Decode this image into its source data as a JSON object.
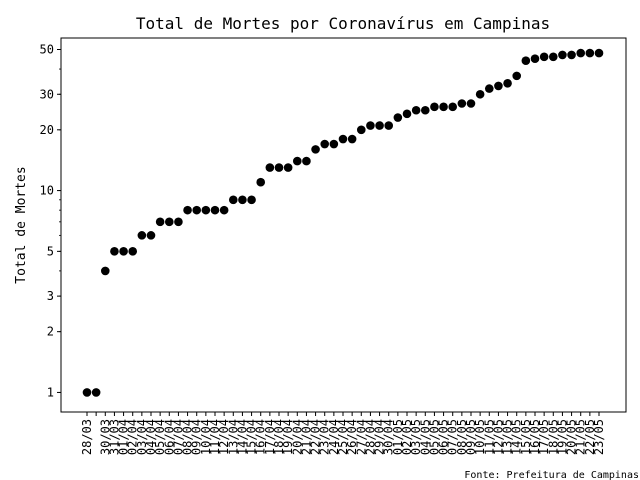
{
  "chart_data": {
    "type": "scatter",
    "title": "Total de Mortes por Coronavírus em Campinas",
    "xlabel": "",
    "ylabel": "Total de Mortes",
    "yscale": "log",
    "ylim": [
      0.8,
      57
    ],
    "y_ticks": [
      1,
      2,
      3,
      5,
      10,
      20,
      30,
      50
    ],
    "grid": false,
    "source": "Fonte: Prefeitura de Campinas",
    "marker_color": "#000000",
    "points": [
      {
        "x": "28/03",
        "y": 1
      },
      {
        "x": "",
        "y": 1
      },
      {
        "x": "30/03",
        "y": 4
      },
      {
        "x": "31/03",
        "y": 5
      },
      {
        "x": "01/04",
        "y": 5
      },
      {
        "x": "02/04",
        "y": 5
      },
      {
        "x": "03/04",
        "y": 6
      },
      {
        "x": "04/04",
        "y": 6
      },
      {
        "x": "05/04",
        "y": 7
      },
      {
        "x": "06/04",
        "y": 7
      },
      {
        "x": "07/04",
        "y": 7
      },
      {
        "x": "08/04",
        "y": 8
      },
      {
        "x": "09/04",
        "y": 8
      },
      {
        "x": "10/04",
        "y": 8
      },
      {
        "x": "11/04",
        "y": 8
      },
      {
        "x": "12/04",
        "y": 8
      },
      {
        "x": "13/04",
        "y": 9
      },
      {
        "x": "14/04",
        "y": 9
      },
      {
        "x": "15/04",
        "y": 9
      },
      {
        "x": "16/04",
        "y": 11
      },
      {
        "x": "17/04",
        "y": 13
      },
      {
        "x": "18/04",
        "y": 13
      },
      {
        "x": "19/04",
        "y": 13
      },
      {
        "x": "20/04",
        "y": 14
      },
      {
        "x": "21/04",
        "y": 14
      },
      {
        "x": "22/04",
        "y": 16
      },
      {
        "x": "23/04",
        "y": 17
      },
      {
        "x": "24/04",
        "y": 17
      },
      {
        "x": "25/04",
        "y": 18
      },
      {
        "x": "26/04",
        "y": 18
      },
      {
        "x": "27/04",
        "y": 20
      },
      {
        "x": "28/04",
        "y": 21
      },
      {
        "x": "29/04",
        "y": 21
      },
      {
        "x": "30/04",
        "y": 21
      },
      {
        "x": "01/05",
        "y": 23
      },
      {
        "x": "02/05",
        "y": 24
      },
      {
        "x": "03/05",
        "y": 25
      },
      {
        "x": "04/05",
        "y": 25
      },
      {
        "x": "05/05",
        "y": 26
      },
      {
        "x": "06/05",
        "y": 26
      },
      {
        "x": "07/05",
        "y": 26
      },
      {
        "x": "08/05",
        "y": 27
      },
      {
        "x": "09/05",
        "y": 27
      },
      {
        "x": "10/05",
        "y": 30
      },
      {
        "x": "11/05",
        "y": 32
      },
      {
        "x": "12/05",
        "y": 33
      },
      {
        "x": "13/05",
        "y": 34
      },
      {
        "x": "14/05",
        "y": 37
      },
      {
        "x": "15/05",
        "y": 44
      },
      {
        "x": "16/05",
        "y": 45
      },
      {
        "x": "17/05",
        "y": 46
      },
      {
        "x": "18/05",
        "y": 46
      },
      {
        "x": "19/05",
        "y": 47
      },
      {
        "x": "20/05",
        "y": 47
      },
      {
        "x": "21/05",
        "y": 48
      },
      {
        "x": "22/05",
        "y": 48
      },
      {
        "x": "23/05",
        "y": 48
      }
    ]
  }
}
